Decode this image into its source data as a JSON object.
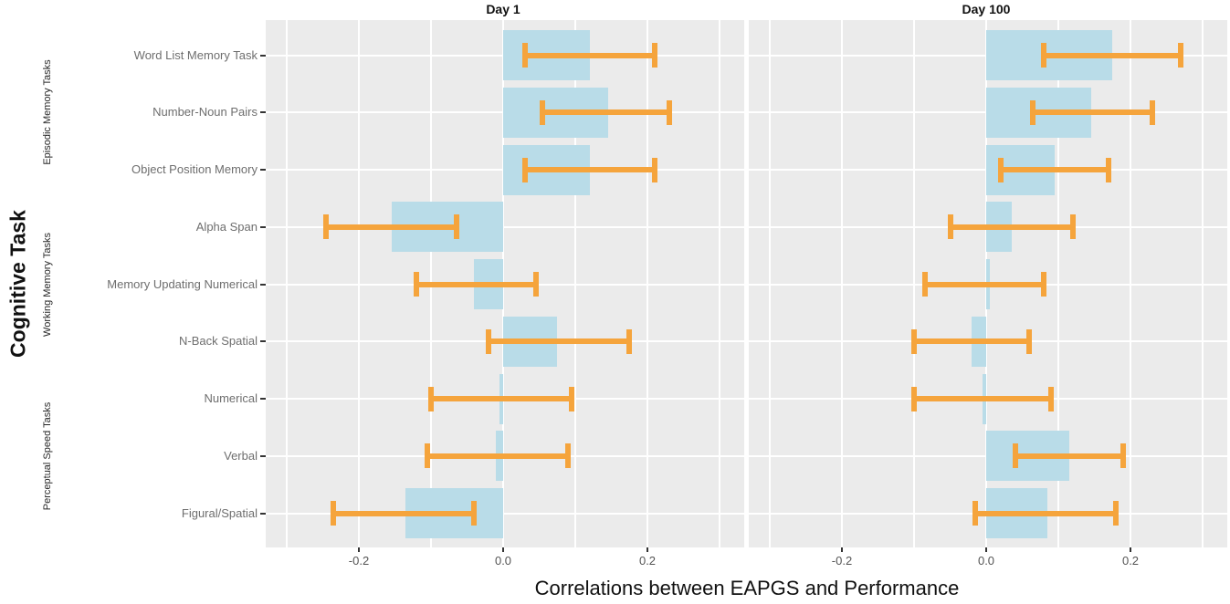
{
  "chart_data": {
    "type": "bar",
    "orientation": "horizontal",
    "title": "",
    "facet_titles": [
      "Day 1",
      "Day 100"
    ],
    "xlabel": "Correlations between EAPGS and Performance",
    "ylabel": "Cognitive Task",
    "xlim": [
      -0.33,
      0.335
    ],
    "x_ticks": [
      -0.2,
      0.0,
      0.2
    ],
    "x_tick_labels": [
      "-0.2",
      "0.0",
      "0.2"
    ],
    "grid": {
      "major_x": [
        -0.2,
        0.0,
        0.2
      ],
      "minor_x": [
        -0.3,
        -0.1,
        0.1,
        0.3
      ],
      "horizontal_major": "one white line per task row",
      "legend_position": "none"
    },
    "tasks": [
      "Word List Memory Task",
      "Number-Noun Pairs",
      "Object Position Memory",
      "Alpha Span",
      "Memory Updating Numerical",
      "N-Back Spatial",
      "Numerical",
      "Verbal",
      "Figural/Spatial"
    ],
    "task_groups": [
      {
        "label": "Episodic Memory Tasks",
        "task_indices": [
          0,
          1,
          2
        ]
      },
      {
        "label": "Working Memory Tasks",
        "task_indices": [
          3,
          4,
          5
        ]
      },
      {
        "label": "Perceptual Speed Tasks",
        "task_indices": [
          6,
          7,
          8
        ]
      }
    ],
    "series": [
      {
        "name": "Day 1",
        "estimates": [
          0.12,
          0.145,
          0.12,
          -0.155,
          -0.04,
          0.075,
          -0.005,
          -0.01,
          -0.135
        ],
        "ci_low": [
          0.03,
          0.055,
          0.03,
          -0.245,
          -0.12,
          -0.02,
          -0.1,
          -0.105,
          -0.235
        ],
        "ci_high": [
          0.21,
          0.23,
          0.21,
          -0.065,
          0.045,
          0.175,
          0.095,
          0.09,
          -0.04
        ]
      },
      {
        "name": "Day 100",
        "estimates": [
          0.175,
          0.145,
          0.095,
          0.035,
          0.005,
          -0.02,
          -0.005,
          0.115,
          0.085
        ],
        "ci_low": [
          0.08,
          0.065,
          0.02,
          -0.05,
          -0.085,
          -0.1,
          -0.1,
          0.04,
          -0.015
        ],
        "ci_high": [
          0.27,
          0.23,
          0.17,
          0.12,
          0.08,
          0.06,
          0.09,
          0.19,
          0.18
        ]
      }
    ],
    "colors": {
      "bar_fill": "#b9dce8",
      "error_bar": "#f5a43c",
      "panel_bg": "#ebebeb",
      "gridline": "#ffffff",
      "axis_text": "#6e6e6e",
      "tick_mark": "#333333",
      "title_text": "#111111"
    }
  }
}
